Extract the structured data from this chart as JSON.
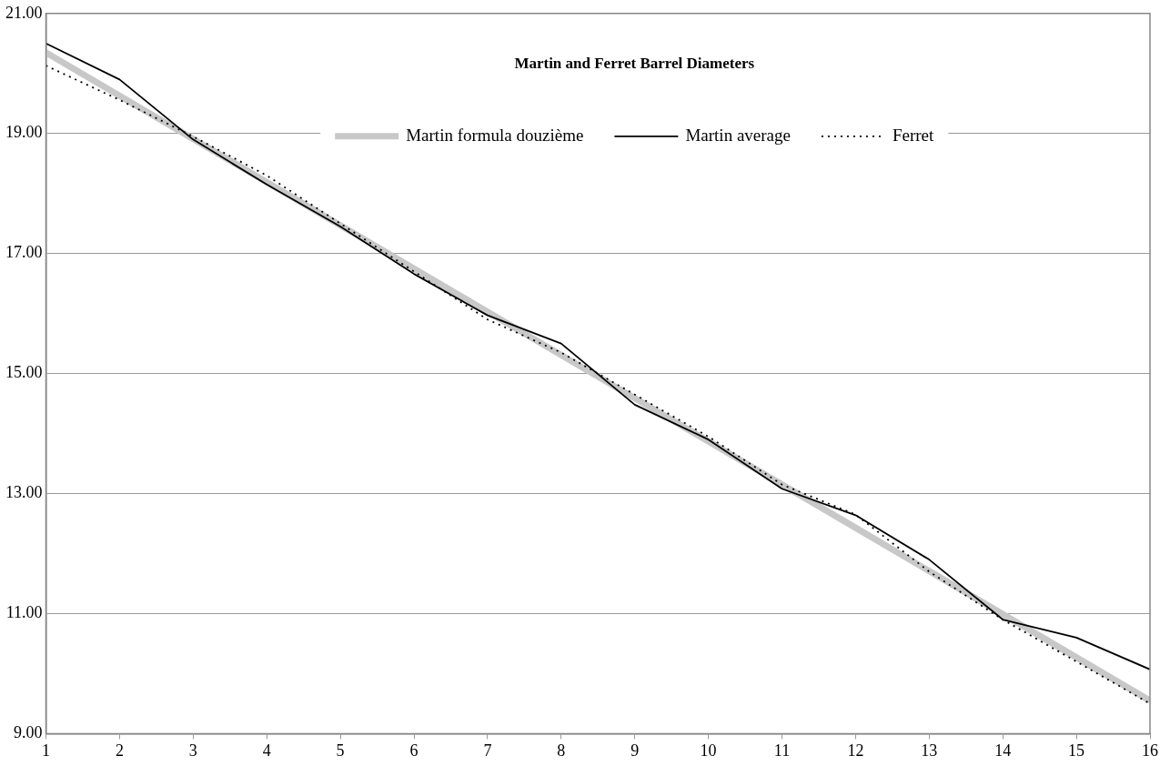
{
  "chart_data": {
    "type": "line",
    "title": "Martin and Ferret Barrel Diameters",
    "x": [
      1,
      2,
      3,
      4,
      5,
      6,
      7,
      8,
      9,
      10,
      11,
      12,
      13,
      14,
      15,
      16
    ],
    "series": [
      {
        "name": "Martin formula douzième",
        "color": "#c8c8c8",
        "line_style": "solid",
        "values": [
          20.35,
          19.63,
          18.91,
          18.19,
          17.47,
          16.75,
          16.03,
          15.31,
          14.59,
          13.87,
          13.15,
          12.43,
          11.71,
          10.99,
          10.27,
          9.55
        ]
      },
      {
        "name": "Martin average",
        "color": "#000000",
        "line_style": "solid",
        "values": [
          20.5,
          19.9,
          18.9,
          18.15,
          17.45,
          16.66,
          15.97,
          15.5,
          14.48,
          13.9,
          13.08,
          12.64,
          11.9,
          10.9,
          10.6,
          10.07
        ]
      },
      {
        "name": "Ferret",
        "color": "#000000",
        "line_style": "dotted",
        "values": [
          20.13,
          19.56,
          18.95,
          18.3,
          17.5,
          16.7,
          15.9,
          15.35,
          14.65,
          13.95,
          13.15,
          12.65,
          11.7,
          10.9,
          10.2,
          9.5
        ]
      }
    ],
    "xlim": [
      1,
      16
    ],
    "xticks": [
      1,
      2,
      3,
      4,
      5,
      6,
      7,
      8,
      9,
      10,
      11,
      12,
      13,
      14,
      15,
      16
    ],
    "ylim": [
      9,
      21
    ],
    "yticks": [
      {
        "value": 9,
        "label": "9.00"
      },
      {
        "value": 11,
        "label": "11.00"
      },
      {
        "value": 13,
        "label": "13.00"
      },
      {
        "value": 15,
        "label": "15.00"
      },
      {
        "value": 17,
        "label": "17.00"
      },
      {
        "value": 19,
        "label": "19.00"
      },
      {
        "value": 21,
        "label": "21.00"
      }
    ],
    "grid": "y",
    "legend": "top",
    "marker": "none"
  }
}
